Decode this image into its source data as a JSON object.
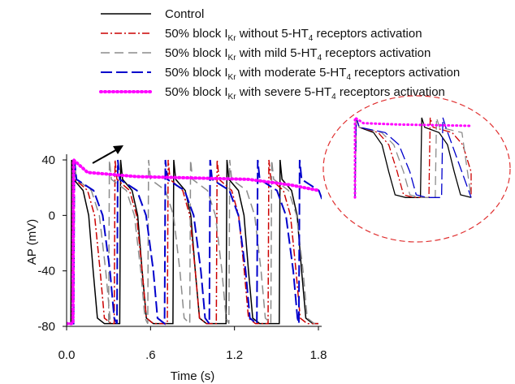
{
  "chart_data": {
    "type": "line",
    "xlabel": "Time (s)",
    "ylabel": "AP (mV)",
    "xlim": [
      0.0,
      1.8
    ],
    "ylim": [
      -80,
      40
    ],
    "x_ticks": [
      0.0,
      0.6,
      1.2,
      1.8
    ],
    "x_tick_labels": [
      "0.0",
      ".6",
      "1.2",
      "1.8"
    ],
    "y_ticks": [
      -80,
      -40,
      0,
      40
    ],
    "y_tick_labels": [
      "-80",
      "-40",
      "0",
      "40"
    ],
    "grid": false,
    "legend_position": "top",
    "inset": "zoomed view of one action potential sequence (dashed red ellipse, top-right)",
    "annotation": "arrow indicating rightward shift of repolarization",
    "series": [
      {
        "name": "Control",
        "color": "#000000",
        "dash": "solid",
        "width": 1.5,
        "onsets": [
          0.03,
          0.38,
          0.76,
          1.14,
          1.52
        ],
        "apd": 0.16
      },
      {
        "name": "50% block IKr without 5-HT4 receptors activation",
        "color": "#cc0000",
        "dash": "9,3,2,3",
        "width": 1.5,
        "onsets": [
          0.04,
          0.34,
          0.72,
          1.07,
          1.44
        ],
        "apd": 0.2
      },
      {
        "name": "50% block IKr with mild 5-HT4 receptors activation",
        "color": "#8c8c8c",
        "dash": "11,6",
        "width": 1.5,
        "onsets": [
          0.05,
          0.3,
          0.58,
          0.88,
          1.16,
          1.46
        ],
        "apd": 0.23
      },
      {
        "name": "50% block IKr with moderate 5-HT4 receptors activation",
        "color": "#0000cc",
        "dash": "14,5",
        "width": 2,
        "onsets": [
          0.05,
          0.36,
          0.7,
          1.02,
          1.36,
          1.66
        ],
        "apd": 0.26
      },
      {
        "name": "50% block IKr with severe 5-HT4 receptors activation",
        "color": "#ff00ff",
        "dash": "1,4",
        "width": 4,
        "plateau": [
          [
            0.05,
            40
          ],
          [
            0.15,
            31
          ],
          [
            0.5,
            28
          ],
          [
            0.9,
            27
          ],
          [
            1.3,
            26
          ],
          [
            1.6,
            22
          ],
          [
            1.8,
            18
          ]
        ]
      }
    ]
  },
  "legend": {
    "entries": [
      {
        "pre": "Control",
        "sub": "",
        "mid": "",
        "sub4": "",
        "post": ""
      },
      {
        "pre": "50% block I",
        "sub": "Kr",
        "mid": " without 5-HT",
        "sub4": "4",
        "post": " receptors activation"
      },
      {
        "pre": "50% block I",
        "sub": "Kr",
        "mid": " with mild 5-HT",
        "sub4": "4",
        "post": " receptors activation"
      },
      {
        "pre": "50% block I",
        "sub": "Kr",
        "mid": " with moderate 5-HT",
        "sub4": "4",
        "post": " receptors activation"
      },
      {
        "pre": "50% block I",
        "sub": "Kr",
        "mid": " with severe 5-HT",
        "sub4": "4",
        "post": " receptors activation"
      }
    ]
  }
}
